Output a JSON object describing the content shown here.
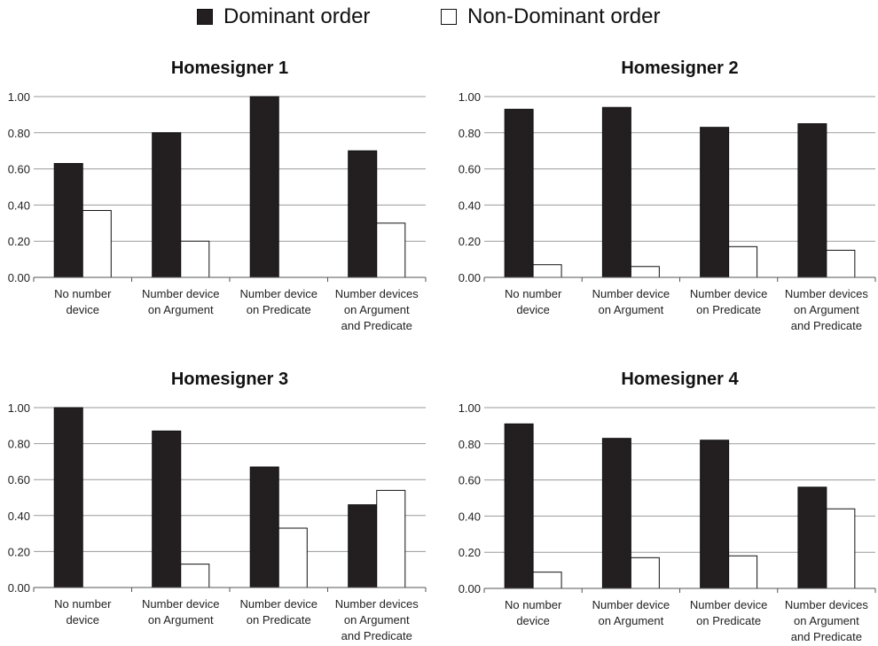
{
  "legend": {
    "dominant": {
      "label": "Dominant order",
      "color": "#231f20"
    },
    "nondominant": {
      "label": "Non-Dominant order",
      "color": "#ffffff"
    }
  },
  "chart_data": [
    {
      "type": "bar",
      "title": "Homesigner 1",
      "categories": [
        [
          "No number",
          "device"
        ],
        [
          "Number device",
          "on Argument"
        ],
        [
          "Number device",
          "on Predicate"
        ],
        [
          "Number devices",
          "on Argument",
          "and Predicate"
        ]
      ],
      "ylim": [
        0,
        1
      ],
      "yticks": [
        "0.00",
        "0.20",
        "0.40",
        "0.60",
        "0.80",
        "1.00"
      ],
      "grid": true,
      "series": [
        {
          "name": "Dominant order",
          "values": [
            0.63,
            0.8,
            1.0,
            0.7
          ]
        },
        {
          "name": "Non-Dominant order",
          "values": [
            0.37,
            0.2,
            0.0,
            0.3
          ]
        }
      ]
    },
    {
      "type": "bar",
      "title": "Homesigner 2",
      "categories": [
        [
          "No number",
          "device"
        ],
        [
          "Number device",
          "on Argument"
        ],
        [
          "Number device",
          "on Predicate"
        ],
        [
          "Number devices",
          "on Argument",
          "and Predicate"
        ]
      ],
      "ylim": [
        0,
        1
      ],
      "yticks": [
        "0.00",
        "0.20",
        "0.40",
        "0.60",
        "0.80",
        "1.00"
      ],
      "grid": true,
      "series": [
        {
          "name": "Dominant order",
          "values": [
            0.93,
            0.94,
            0.83,
            0.85
          ]
        },
        {
          "name": "Non-Dominant order",
          "values": [
            0.07,
            0.06,
            0.17,
            0.15
          ]
        }
      ]
    },
    {
      "type": "bar",
      "title": "Homesigner 3",
      "categories": [
        [
          "No number",
          "device"
        ],
        [
          "Number device",
          "on Argument"
        ],
        [
          "Number device",
          "on Predicate"
        ],
        [
          "Number devices",
          "on Argument",
          "and Predicate"
        ]
      ],
      "ylim": [
        0,
        1
      ],
      "yticks": [
        "0.00",
        "0.20",
        "0.40",
        "0.60",
        "0.80",
        "1.00"
      ],
      "grid": true,
      "series": [
        {
          "name": "Dominant order",
          "values": [
            1.0,
            0.87,
            0.67,
            0.46
          ]
        },
        {
          "name": "Non-Dominant order",
          "values": [
            0.0,
            0.13,
            0.33,
            0.54
          ]
        }
      ]
    },
    {
      "type": "bar",
      "title": "Homesigner 4",
      "categories": [
        [
          "No number",
          "device"
        ],
        [
          "Number device",
          "on Argument"
        ],
        [
          "Number device",
          "on Predicate"
        ],
        [
          "Number devices",
          "on Argument",
          "and Predicate"
        ]
      ],
      "ylim": [
        0,
        1
      ],
      "yticks": [
        "0.00",
        "0.20",
        "0.40",
        "0.60",
        "0.80",
        "1.00"
      ],
      "grid": true,
      "series": [
        {
          "name": "Dominant order",
          "values": [
            0.91,
            0.83,
            0.82,
            0.56
          ]
        },
        {
          "name": "Non-Dominant order",
          "values": [
            0.09,
            0.17,
            0.18,
            0.44
          ]
        }
      ]
    }
  ]
}
